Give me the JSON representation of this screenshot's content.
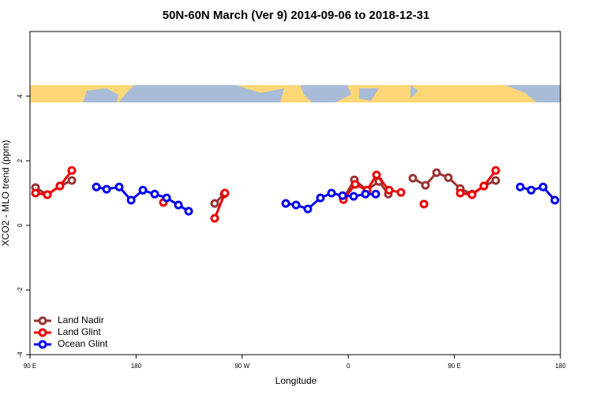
{
  "chart_data": {
    "type": "line",
    "title": "50N-60N March (Ver 9)   2014-09-06 to 2018-12-31",
    "xlabel": "Longitude",
    "ylabel": "XCO2 - MLO trend (ppm)",
    "xlim": [
      90,
      540
    ],
    "xticks": [
      {
        "value": 90,
        "label": "90 E"
      },
      {
        "value": 180,
        "label": "180"
      },
      {
        "value": 270,
        "label": "90 W"
      },
      {
        "value": 360,
        "label": "0"
      },
      {
        "value": 450,
        "label": "90 E"
      },
      {
        "value": 540,
        "label": "180"
      }
    ],
    "ylim": [
      -4,
      6
    ],
    "yticks": [
      -4,
      -2,
      0,
      2,
      4
    ],
    "legend": "bottom-left",
    "series": [
      {
        "name": "Land Nadir",
        "color": "#993333",
        "x": [
          94.7,
          104.7,
          115.4,
          125.5,
          null,
          246.7,
          254.7,
          null,
          355.9,
          365.2,
          375.9,
          386.0,
          394.0,
          null,
          414.8,
          425.5,
          434.9,
          444.9,
          455.0,
          465.0,
          475.1,
          485.1
        ],
        "values": [
          1.17,
          0.95,
          1.22,
          1.39,
          null,
          0.68,
          0.97,
          null,
          0.83,
          1.41,
          1.09,
          1.36,
          0.97,
          null,
          1.46,
          1.24,
          1.63,
          1.48,
          1.14,
          0.97,
          1.22,
          1.39
        ]
      },
      {
        "name": "Land Glint",
        "color": "#ee0000",
        "x": [
          94.7,
          104.7,
          115.4,
          125.5,
          null,
          203.2,
          null,
          246.7,
          255.4,
          null,
          355.9,
          365.9,
          375.9,
          384.0,
          394.7,
          404.7,
          null,
          424.2,
          null,
          455.0,
          465.0,
          475.1,
          485.1
        ],
        "values": [
          1.0,
          0.95,
          1.22,
          1.7,
          null,
          0.71,
          null,
          0.22,
          1.0,
          null,
          0.8,
          1.27,
          1.09,
          1.56,
          1.09,
          1.02,
          null,
          0.66,
          null,
          1.0,
          0.95,
          1.22,
          1.7
        ]
      },
      {
        "name": "Ocean Glint",
        "color": "#0000ee",
        "x": [
          146.3,
          155.0,
          165.7,
          175.8,
          185.8,
          195.8,
          205.9,
          215.9,
          224.6,
          null,
          307.0,
          315.7,
          325.7,
          336.4,
          345.8,
          355.2,
          364.6,
          374.6,
          383.3,
          null,
          505.9,
          515.2,
          525.3,
          535.3
        ],
        "values": [
          1.19,
          1.12,
          1.19,
          0.78,
          1.09,
          0.97,
          0.85,
          0.63,
          0.44,
          null,
          0.68,
          0.63,
          0.51,
          0.85,
          1.0,
          0.92,
          0.9,
          0.97,
          0.97,
          null,
          1.19,
          1.09,
          1.19,
          0.78
        ]
      }
    ]
  }
}
